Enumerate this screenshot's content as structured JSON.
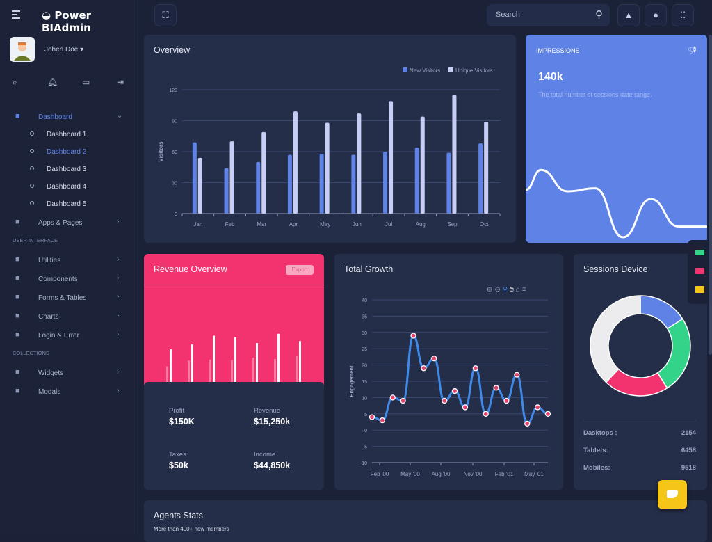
{
  "app": {
    "title": "Power BIAdmin"
  },
  "user": {
    "name": "Johen Doe",
    "caret": "▾"
  },
  "sidebar": {
    "quick_icons": [
      "search-icon",
      "bell-icon",
      "chat-icon",
      "logout-icon"
    ],
    "items": [
      {
        "label": "Dashboard",
        "icon": "dashboard-icon",
        "active": true,
        "expanded": true
      },
      {
        "label": "Apps & Pages",
        "icon": "grid-icon"
      }
    ],
    "dashboard_subitems": [
      {
        "label": "Dashboard 1"
      },
      {
        "label": "Dashboard 2",
        "active": true
      },
      {
        "label": "Dashboard 3"
      },
      {
        "label": "Dashboard 4"
      },
      {
        "label": "Dashboard 5"
      }
    ],
    "section_ui": "USER INTERFACE",
    "ui_items": [
      {
        "label": "Utilities",
        "icon": "edit-icon"
      },
      {
        "label": "Components",
        "icon": "tools-icon"
      },
      {
        "label": "Forms & Tables",
        "icon": "table-icon"
      },
      {
        "label": "Charts",
        "icon": "pie-chart-icon"
      },
      {
        "label": "Login & Error",
        "icon": "lock-icon"
      }
    ],
    "section_collections": "COLLECTIONS",
    "collection_items": [
      {
        "label": "Widgets",
        "icon": "library-icon"
      },
      {
        "label": "Modals",
        "icon": "book-icon"
      }
    ]
  },
  "topbar": {
    "search_placeholder": "Search"
  },
  "overview": {
    "title": "Overview"
  },
  "impressions": {
    "label": "IMPRESSIONS",
    "value": "140k",
    "description": "The total number of sessions date range.",
    "color": "#5e82e6"
  },
  "revenue": {
    "title": "Revenue Overview",
    "export_label": "Export",
    "color": "#f2336f",
    "stats": [
      {
        "label": "Profit",
        "value": "$150K"
      },
      {
        "label": "Revenue",
        "value": "$15,250k"
      },
      {
        "label": "Taxes",
        "value": "$50k"
      },
      {
        "label": "Income",
        "value": "$44,850k"
      }
    ]
  },
  "growth": {
    "title": "Total Growth",
    "toolbar": [
      "zoom-in-icon",
      "zoom-out-icon",
      "selection-zoom-icon",
      "pan-icon",
      "reset-home-icon",
      "menu-icon"
    ]
  },
  "sessions": {
    "title": "Sessions Device",
    "rows": [
      {
        "label": "Dasktops :",
        "value": "2154"
      },
      {
        "label": "Tablets:",
        "value": "6458"
      },
      {
        "label": "Mobiles:",
        "value": "9518"
      }
    ]
  },
  "agents": {
    "title": "Agents Stats",
    "subtitle": "More than 400+ new members"
  },
  "chart_data": [
    {
      "type": "bar",
      "id": "overview",
      "ylabel": "Visitors",
      "ylim": [
        0,
        120
      ],
      "yticks": [
        0,
        30,
        60,
        90,
        120
      ],
      "grid": true,
      "legend": "top-right",
      "categories": [
        "Jan",
        "Feb",
        "Mar",
        "Apr",
        "May",
        "Jun",
        "Jul",
        "Aug",
        "Sep",
        "Oct"
      ],
      "series": [
        {
          "name": "New Visitors",
          "color": "#5e82e6",
          "values": [
            69,
            44,
            50,
            57,
            58,
            57,
            60,
            64,
            59,
            68
          ]
        },
        {
          "name": "Unique Visitors",
          "color": "#c8cdf5",
          "values": [
            54,
            70,
            79,
            99,
            88,
            97,
            109,
            94,
            115,
            89
          ]
        }
      ]
    },
    {
      "type": "line",
      "id": "impressions",
      "color": "#ffffff",
      "values": [
        52,
        78,
        50,
        54,
        -10,
        40,
        4,
        4
      ]
    },
    {
      "type": "bar",
      "id": "revenue",
      "series": [
        {
          "color": "#f77aa0",
          "values": [
            32,
            44,
            46,
            45,
            50,
            47,
            53
          ]
        },
        {
          "color": "#ffffff",
          "values": [
            67,
            77,
            95,
            92,
            80,
            99,
            84
          ]
        }
      ]
    },
    {
      "type": "line",
      "id": "growth",
      "ylabel": "Engagement",
      "ylim": [
        -10,
        40
      ],
      "yticks": [
        -10,
        -5,
        0,
        5,
        10,
        15,
        20,
        25,
        30,
        35,
        40
      ],
      "grid": true,
      "xticks": [
        "Feb '00",
        "May '00",
        "Aug '00",
        "Nov '00",
        "Feb '01",
        "May '01"
      ],
      "color": "#3f8ae8",
      "marker_color": "#e0456f",
      "values": [
        4,
        3,
        10,
        9,
        29,
        19,
        22,
        9,
        12,
        7,
        19,
        5,
        13,
        9,
        17,
        2,
        7,
        5
      ]
    },
    {
      "type": "pie",
      "id": "sessions",
      "donut": true,
      "slices": [
        {
          "color": "#5e82e6",
          "value": 16
        },
        {
          "color": "#34d38a",
          "value": 25
        },
        {
          "color": "#f2336f",
          "value": 21
        },
        {
          "color": "#ececef",
          "value": 38
        }
      ]
    }
  ]
}
